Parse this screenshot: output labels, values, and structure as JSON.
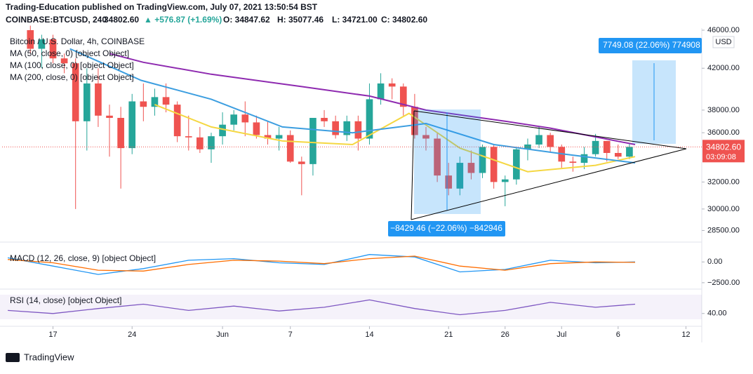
{
  "header": {
    "publisher": "Trading-Education published on TradingView.com, July 07, 2021 13:50:54 BST",
    "symbol": "COINBASE:BTCUSD, 240",
    "last": "34802.60",
    "change": "▲ +576.87 (+1.69%)",
    "open": "O: 34847.62",
    "high": "H: 35077.46",
    "low": "L: 34721.00",
    "close": "C: 34802.60"
  },
  "legend": {
    "instrument": "Bitcoin / U.S. Dollar, 4h, COINBASE",
    "ma50": "MA (50, close, 0) [object Object]",
    "ma100": "MA (100, close, 0) [object Object]",
    "ma200": "MA (200, close, 0) [object Object]",
    "macd": "MACD (12, 26, close, 9) [object Object]",
    "rsi": "RSI (14, close) [object Object]"
  },
  "currency": "USD",
  "price_label": "34802.60",
  "countdown": "03:09:08",
  "brand": "TradingView",
  "chart_data": {
    "type": "candlestick",
    "log_scale": true,
    "xlim": [
      -4.5,
      57.4
    ],
    "xticks": [
      {
        "value": 0,
        "label": "17"
      },
      {
        "value": 7,
        "label": "24"
      },
      {
        "value": 15,
        "label": "Jun"
      },
      {
        "value": 21,
        "label": "7"
      },
      {
        "value": 28,
        "label": "14"
      },
      {
        "value": 35,
        "label": "21"
      },
      {
        "value": 40,
        "label": "26"
      },
      {
        "value": 45,
        "label": "Jul"
      },
      {
        "value": 50,
        "label": "6"
      },
      {
        "value": 56,
        "label": "12"
      }
    ],
    "ylim": [
      28000,
      46000
    ],
    "yticks": [
      {
        "value": 28500,
        "label": "28500.00"
      },
      {
        "value": 30000,
        "label": "30000.00"
      },
      {
        "value": 32000,
        "label": "32000.00"
      },
      {
        "value": 36000,
        "label": "36000.00"
      },
      {
        "value": 38000,
        "label": "38000.00"
      },
      {
        "value": 42000,
        "label": "42000.00"
      },
      {
        "value": 46000,
        "label": "46000.00"
      }
    ],
    "last_price": 34802.6,
    "up_color": "#26a69a",
    "down_color": "#ef5350",
    "candles": {
      "x": [
        -2,
        -1,
        0,
        1,
        2,
        3,
        4,
        5,
        6,
        7,
        8,
        9,
        10,
        11,
        12,
        13,
        14,
        15,
        16,
        17,
        18,
        19,
        20,
        21,
        22,
        23,
        24,
        25,
        26,
        27,
        28,
        29,
        30,
        31,
        32,
        33,
        34,
        35,
        36,
        37,
        38,
        39,
        40,
        41,
        42,
        43,
        44,
        45,
        46,
        47,
        48,
        49,
        50,
        51
      ],
      "open": [
        46000,
        44000,
        45000,
        43000,
        42500,
        37000,
        40500,
        37500,
        37300,
        34700,
        38800,
        38300,
        39200,
        38500,
        35700,
        35600,
        34600,
        35700,
        36700,
        37600,
        36900,
        35800,
        35500,
        35800,
        33600,
        33400,
        37300,
        37000,
        35800,
        37000,
        35500,
        39000,
        40500,
        40200,
        38300,
        35800,
        35500,
        32500,
        31500,
        33500,
        32700,
        34800,
        32000,
        32200,
        34600,
        35000,
        35800,
        34800,
        33600,
        33500,
        34200,
        35300,
        34300,
        34000
      ],
      "high": [
        46500,
        45500,
        45500,
        43500,
        43000,
        42000,
        42000,
        38500,
        38300,
        39500,
        40500,
        40000,
        40500,
        38800,
        37500,
        36500,
        36000,
        37800,
        38000,
        38800,
        37500,
        37000,
        36500,
        36200,
        34000,
        37300,
        38000,
        37500,
        37500,
        37500,
        40500,
        41500,
        41000,
        40500,
        39500,
        36500,
        36000,
        33500,
        34000,
        34500,
        35000,
        35000,
        32500,
        34700,
        35500,
        36600,
        36000,
        35000,
        34000,
        34800,
        35900,
        35300,
        35000,
        35100
      ],
      "low": [
        43500,
        42000,
        42500,
        41500,
        30000,
        34500,
        36500,
        34000,
        31500,
        34200,
        37000,
        37500,
        37800,
        35200,
        34500,
        34300,
        33500,
        35000,
        36200,
        35700,
        35500,
        35000,
        34500,
        33500,
        31000,
        32500,
        36500,
        35500,
        35300,
        34500,
        35000,
        38500,
        39000,
        37500,
        35500,
        34500,
        32000,
        31000,
        31000,
        32200,
        32300,
        31500,
        30200,
        31800,
        33700,
        34700,
        34400,
        33100,
        32800,
        33000,
        34000,
        33600,
        33800,
        33800
      ],
      "close": [
        44000,
        45000,
        43000,
        42500,
        37000,
        40500,
        37500,
        37300,
        34700,
        38800,
        38300,
        39200,
        38500,
        35700,
        35600,
        34600,
        35700,
        36700,
        37600,
        36900,
        35800,
        35500,
        35800,
        33600,
        33400,
        37300,
        37000,
        35800,
        37000,
        35500,
        39000,
        40500,
        40200,
        38300,
        35800,
        35500,
        32500,
        31500,
        33500,
        32700,
        34800,
        32000,
        32200,
        34600,
        35000,
        35800,
        34800,
        33600,
        33500,
        34200,
        35300,
        34300,
        34000,
        34802.6
      ]
    },
    "series": [
      {
        "name": "MA 50",
        "color": "#f5d742",
        "x": [
          9,
          14,
          20.3,
          26.5,
          31.5,
          36,
          42,
          48,
          51.5
        ],
        "values": [
          38500,
          36500,
          35300,
          35000,
          37700,
          34700,
          32800,
          33300,
          34000
        ]
      },
      {
        "name": "MA 100",
        "color": "#3c9ee0",
        "x": [
          1.5,
          7.8,
          14,
          20.3,
          26.5,
          33,
          39,
          45.3,
          51.5
        ],
        "values": [
          44000,
          40800,
          39000,
          36500,
          36000,
          36800,
          35000,
          34200,
          33500
        ]
      },
      {
        "name": "MA 200",
        "color": "#8e2ab0",
        "x": [
          5,
          8,
          14,
          22,
          28,
          33,
          40,
          44,
          51.5
        ],
        "values": [
          43500,
          42600,
          41400,
          40200,
          39300,
          38000,
          37000,
          36400,
          35000
        ]
      }
    ],
    "annotations": {
      "down": "−8429.46 (−22.06%) −842946",
      "up": "7749.08 (22.06%) 774908"
    }
  },
  "macd_data": {
    "ylim": [
      -3100,
      1800
    ],
    "yticks": [
      {
        "value": 0,
        "label": "0.00"
      },
      {
        "value": -2500,
        "label": "−2500.00"
      }
    ],
    "x": [
      -4,
      0,
      4,
      8,
      12,
      16,
      20,
      24,
      28,
      32,
      36,
      40,
      44,
      48,
      51.5
    ],
    "series": [
      {
        "name": "MACD",
        "color": "#2196f3",
        "values": [
          500,
          -500,
          -1500,
          -800,
          200,
          400,
          -100,
          -300,
          900,
          600,
          -1200,
          -900,
          200,
          -100,
          0
        ]
      },
      {
        "name": "Signal",
        "color": "#ff6d00",
        "values": [
          300,
          -100,
          -1000,
          -1100,
          -300,
          200,
          100,
          -200,
          400,
          700,
          -500,
          -1000,
          -200,
          0,
          -50
        ]
      }
    ]
  },
  "rsi_data": {
    "ylim": [
      25,
      76
    ],
    "yticks": [
      {
        "value": 40,
        "label": "40.00"
      }
    ],
    "color": "#7e57c2",
    "x": [
      -4,
      0,
      4,
      8,
      12,
      16,
      20,
      24,
      28,
      32,
      36,
      40,
      44,
      48,
      51.5
    ],
    "values": [
      45,
      40,
      48,
      55,
      45,
      52,
      44,
      50,
      62,
      48,
      38,
      45,
      58,
      50,
      55
    ]
  }
}
